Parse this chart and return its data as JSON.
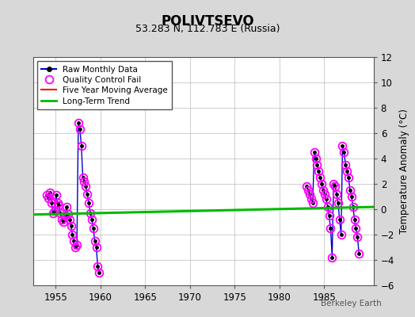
{
  "title": "POLIVTSEVO",
  "subtitle": "53.283 N, 112.783 E (Russia)",
  "credit": "Berkeley Earth",
  "ylabel": "Temperature Anomaly (°C)",
  "xlim": [
    1952.5,
    1990.5
  ],
  "ylim": [
    -6,
    12
  ],
  "yticks": [
    -6,
    -4,
    -2,
    0,
    2,
    4,
    6,
    8,
    10,
    12
  ],
  "xticks": [
    1955,
    1960,
    1965,
    1970,
    1975,
    1980,
    1985
  ],
  "background_color": "#d8d8d8",
  "plot_bg_color": "#ffffff",
  "grid_color": "#bbbbbb",
  "raw_color": "#0000cc",
  "qc_color": "#ff00ff",
  "trend_color": "#00bb00",
  "mavg_color": "#ff0000",
  "trend_x": [
    1952.5,
    1990.5
  ],
  "trend_y": [
    -0.42,
    0.18
  ],
  "cluster1": {
    "years": [
      1954,
      1955,
      1956,
      1957,
      1958,
      1959
    ],
    "data": [
      [
        1954.04,
        1.1
      ],
      [
        1954.21,
        0.9
      ],
      [
        1954.38,
        1.3
      ],
      [
        1954.54,
        0.5
      ],
      [
        1954.71,
        -0.3
      ],
      [
        1954.88,
        -0.1
      ],
      [
        1955.04,
        1.1
      ],
      [
        1955.21,
        0.5
      ],
      [
        1955.38,
        0.3
      ],
      [
        1955.54,
        -0.3
      ],
      [
        1955.71,
        -0.8
      ],
      [
        1955.88,
        -1.0
      ],
      [
        1956.04,
        -0.5
      ],
      [
        1956.21,
        0.2
      ],
      [
        1956.38,
        -0.4
      ],
      [
        1956.54,
        -0.8
      ],
      [
        1956.71,
        -1.3
      ],
      [
        1956.88,
        -2.0
      ],
      [
        1957.04,
        -2.5
      ],
      [
        1957.21,
        -3.0
      ],
      [
        1957.38,
        -2.8
      ],
      [
        1957.54,
        6.8
      ],
      [
        1957.71,
        6.3
      ],
      [
        1957.88,
        5.0
      ],
      [
        1958.04,
        2.5
      ],
      [
        1958.21,
        2.2
      ],
      [
        1958.38,
        1.8
      ],
      [
        1958.54,
        1.2
      ],
      [
        1958.71,
        0.5
      ],
      [
        1958.88,
        -0.3
      ],
      [
        1959.04,
        -0.8
      ],
      [
        1959.21,
        -1.5
      ],
      [
        1959.38,
        -2.5
      ],
      [
        1959.54,
        -3.0
      ],
      [
        1959.71,
        -4.5
      ],
      [
        1959.88,
        -5.0
      ]
    ]
  },
  "cluster2": {
    "years": [
      1983,
      1984,
      1985,
      1986,
      1987,
      1988
    ],
    "data": [
      [
        1983.04,
        1.8
      ],
      [
        1983.21,
        1.5
      ],
      [
        1983.38,
        1.2
      ],
      [
        1983.54,
        0.8
      ],
      [
        1983.71,
        0.5
      ],
      [
        1983.88,
        4.5
      ],
      [
        1984.04,
        4.0
      ],
      [
        1984.21,
        3.5
      ],
      [
        1984.38,
        3.0
      ],
      [
        1984.54,
        2.5
      ],
      [
        1984.71,
        2.0
      ],
      [
        1984.88,
        1.5
      ],
      [
        1985.04,
        1.2
      ],
      [
        1985.21,
        0.8
      ],
      [
        1985.38,
        0.2
      ],
      [
        1985.54,
        -0.5
      ],
      [
        1985.71,
        -1.5
      ],
      [
        1985.88,
        -3.8
      ],
      [
        1986.04,
        2.0
      ],
      [
        1986.21,
        1.8
      ],
      [
        1986.38,
        1.2
      ],
      [
        1986.54,
        0.5
      ],
      [
        1986.71,
        -0.8
      ],
      [
        1986.88,
        -2.0
      ],
      [
        1987.04,
        5.0
      ],
      [
        1987.21,
        4.5
      ],
      [
        1987.38,
        3.5
      ],
      [
        1987.54,
        3.0
      ],
      [
        1987.71,
        2.5
      ],
      [
        1987.88,
        1.5
      ],
      [
        1988.04,
        1.0
      ],
      [
        1988.21,
        0.2
      ],
      [
        1988.38,
        -0.8
      ],
      [
        1988.54,
        -1.5
      ],
      [
        1988.71,
        -2.2
      ],
      [
        1988.88,
        -3.5
      ]
    ]
  }
}
